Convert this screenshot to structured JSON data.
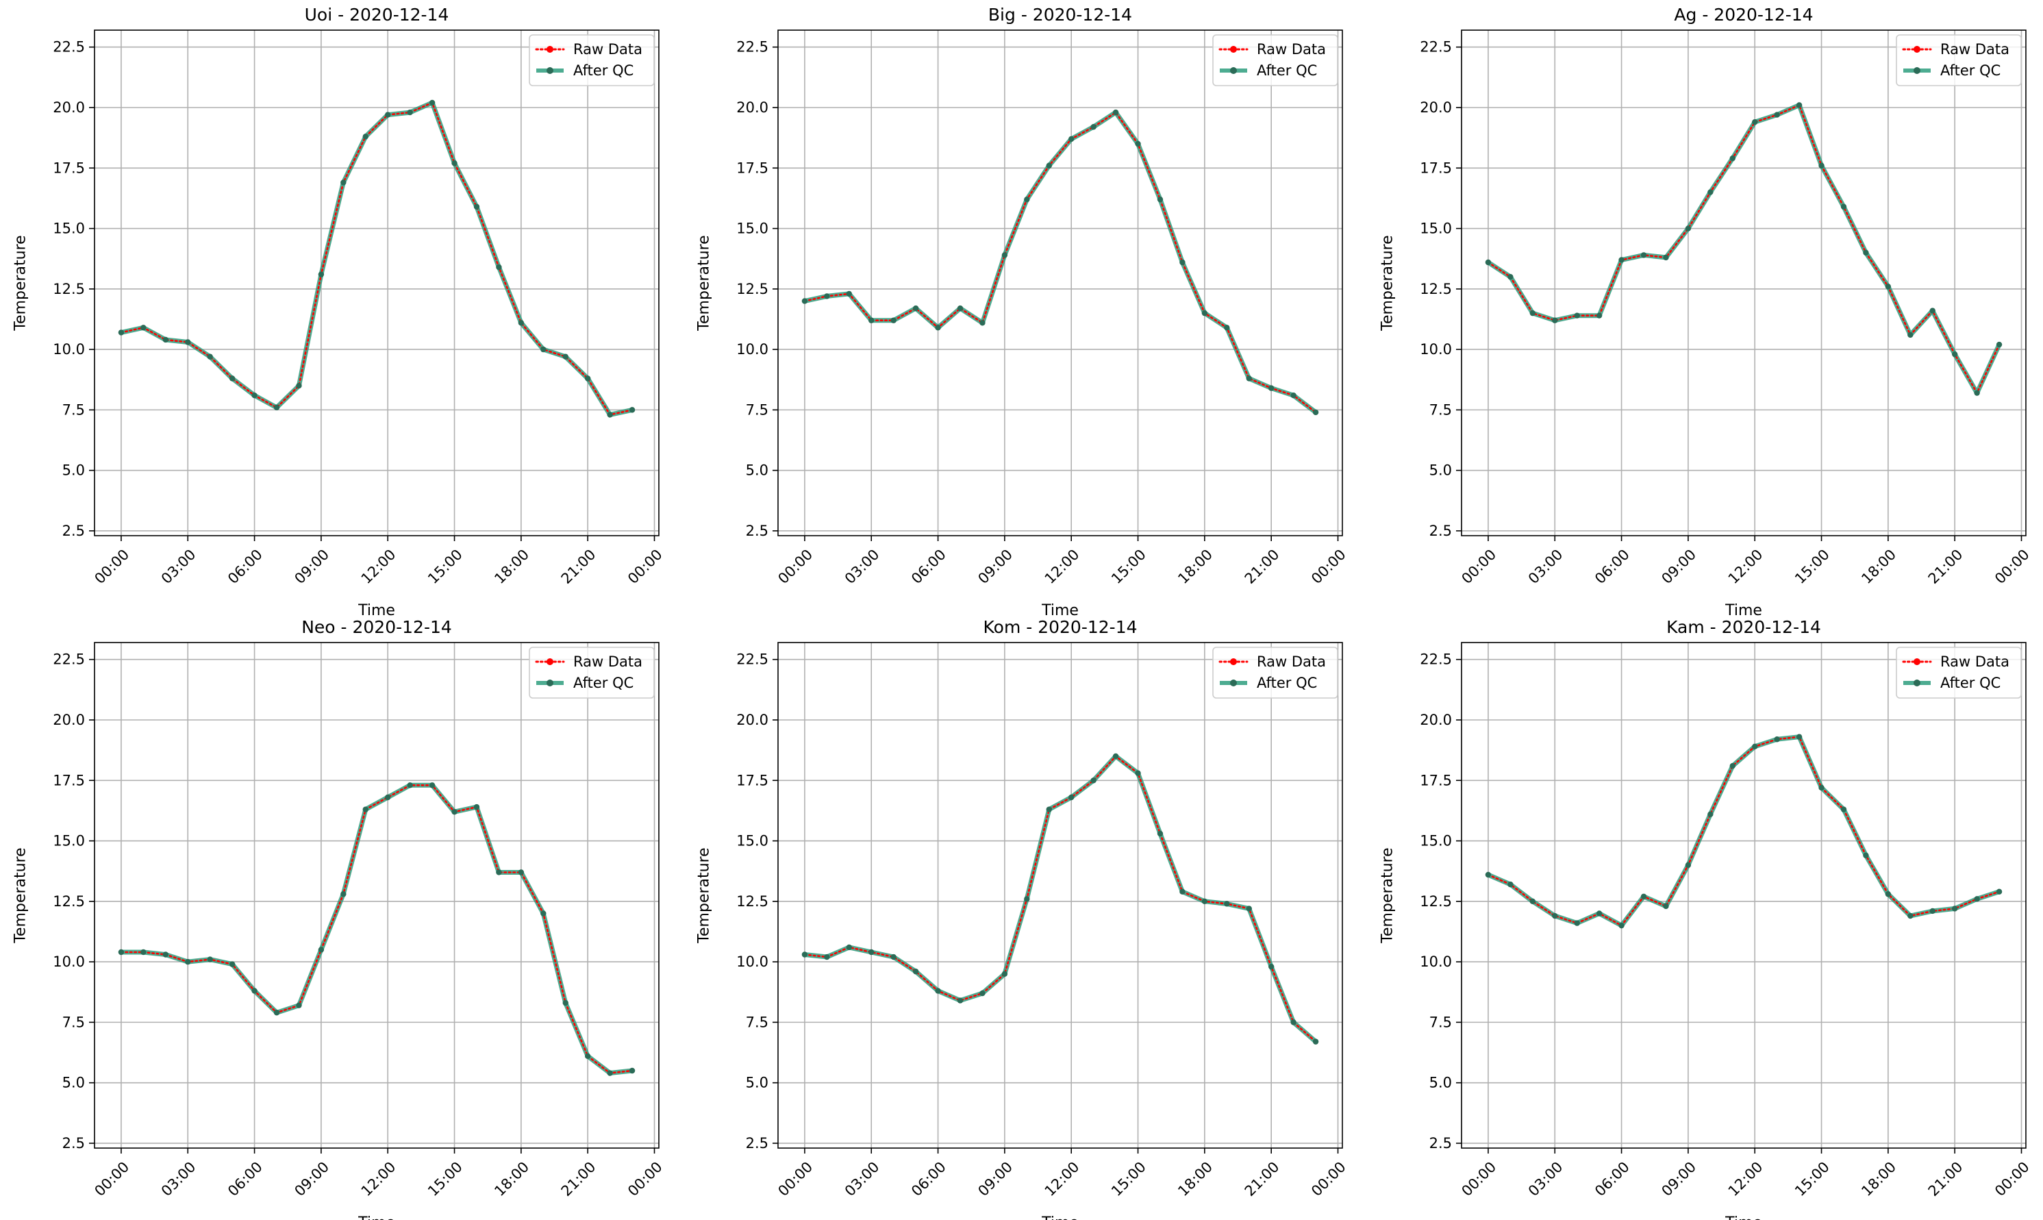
{
  "chart_data": [
    {
      "type": "line",
      "title": "Uoi - 2020-12-14",
      "xlabel": "Time",
      "ylabel": "Temperature",
      "ylim": [
        2.3,
        23.2
      ],
      "xlim": [
        "2020-12-13 22:48",
        "2020-12-15 00:12"
      ],
      "yticks": [
        2.5,
        5.0,
        7.5,
        10.0,
        12.5,
        15.0,
        17.5,
        20.0,
        22.5
      ],
      "xticks": [
        "2020-12-14 00:00",
        "2020-12-14 03:00",
        "2020-12-14 06:00",
        "2020-12-14 09:00",
        "2020-12-14 12:00",
        "2020-12-14 15:00",
        "2020-12-14 18:00",
        "2020-12-14 21:00",
        "2020-12-15 00:00"
      ],
      "xtick_labels": [
        "00:00",
        "03:00",
        "06:00",
        "09:00",
        "12:00",
        "15:00",
        "18:00",
        "21:00",
        "00:00"
      ],
      "grid": true,
      "legend_position": "top-right",
      "x": [
        "2020-12-14 00:00",
        "2020-12-14 01:00",
        "2020-12-14 02:00",
        "2020-12-14 03:00",
        "2020-12-14 04:00",
        "2020-12-14 05:00",
        "2020-12-14 06:00",
        "2020-12-14 07:00",
        "2020-12-14 08:00",
        "2020-12-14 09:00",
        "2020-12-14 10:00",
        "2020-12-14 11:00",
        "2020-12-14 12:00",
        "2020-12-14 13:00",
        "2020-12-14 14:00",
        "2020-12-14 15:00",
        "2020-12-14 16:00",
        "2020-12-14 17:00",
        "2020-12-14 18:00",
        "2020-12-14 19:00",
        "2020-12-14 20:00",
        "2020-12-14 21:00",
        "2020-12-14 22:00",
        "2020-12-14 23:00"
      ],
      "series": [
        {
          "name": "Raw Data",
          "color": "#ff0000",
          "values": [
            10.7,
            10.9,
            10.4,
            10.3,
            9.7,
            8.8,
            8.1,
            7.6,
            8.5,
            13.1,
            16.9,
            18.8,
            19.7,
            19.8,
            20.2,
            17.7,
            15.9,
            13.4,
            11.1,
            10.0,
            9.7,
            8.8,
            7.3,
            7.5
          ]
        },
        {
          "name": "After QC",
          "color": "#2e9e7e",
          "values": [
            10.7,
            10.9,
            10.4,
            10.3,
            9.7,
            8.8,
            8.1,
            7.6,
            8.5,
            13.1,
            16.9,
            18.8,
            19.7,
            19.8,
            20.2,
            17.7,
            15.9,
            13.4,
            11.1,
            10.0,
            9.7,
            8.8,
            7.3,
            7.5
          ]
        }
      ]
    },
    {
      "type": "line",
      "title": "Big - 2020-12-14",
      "xlabel": "Time",
      "ylabel": "Temperature",
      "ylim": [
        2.3,
        23.2
      ],
      "xlim": [
        "2020-12-13 22:48",
        "2020-12-15 00:12"
      ],
      "yticks": [
        2.5,
        5.0,
        7.5,
        10.0,
        12.5,
        15.0,
        17.5,
        20.0,
        22.5
      ],
      "xticks": [
        "2020-12-14 00:00",
        "2020-12-14 03:00",
        "2020-12-14 06:00",
        "2020-12-14 09:00",
        "2020-12-14 12:00",
        "2020-12-14 15:00",
        "2020-12-14 18:00",
        "2020-12-14 21:00",
        "2020-12-15 00:00"
      ],
      "xtick_labels": [
        "00:00",
        "03:00",
        "06:00",
        "09:00",
        "12:00",
        "15:00",
        "18:00",
        "21:00",
        "00:00"
      ],
      "grid": true,
      "legend_position": "top-right",
      "x": [
        "2020-12-14 00:00",
        "2020-12-14 01:00",
        "2020-12-14 02:00",
        "2020-12-14 03:00",
        "2020-12-14 04:00",
        "2020-12-14 05:00",
        "2020-12-14 06:00",
        "2020-12-14 07:00",
        "2020-12-14 08:00",
        "2020-12-14 09:00",
        "2020-12-14 10:00",
        "2020-12-14 11:00",
        "2020-12-14 12:00",
        "2020-12-14 13:00",
        "2020-12-14 14:00",
        "2020-12-14 15:00",
        "2020-12-14 16:00",
        "2020-12-14 17:00",
        "2020-12-14 18:00",
        "2020-12-14 19:00",
        "2020-12-14 20:00",
        "2020-12-14 21:00",
        "2020-12-14 22:00",
        "2020-12-14 23:00"
      ],
      "series": [
        {
          "name": "Raw Data",
          "color": "#ff0000",
          "values": [
            12.0,
            12.2,
            12.3,
            11.2,
            11.2,
            11.7,
            10.9,
            11.7,
            11.1,
            13.9,
            16.2,
            17.6,
            18.7,
            19.2,
            19.8,
            18.5,
            16.2,
            13.6,
            11.5,
            10.9,
            8.8,
            8.4,
            8.1,
            7.4
          ]
        },
        {
          "name": "After QC",
          "color": "#2e9e7e",
          "values": [
            12.0,
            12.2,
            12.3,
            11.2,
            11.2,
            11.7,
            10.9,
            11.7,
            11.1,
            13.9,
            16.2,
            17.6,
            18.7,
            19.2,
            19.8,
            18.5,
            16.2,
            13.6,
            11.5,
            10.9,
            8.8,
            8.4,
            8.1,
            7.4
          ]
        }
      ]
    },
    {
      "type": "line",
      "title": "Ag - 2020-12-14",
      "xlabel": "Time",
      "ylabel": "Temperature",
      "ylim": [
        2.3,
        23.2
      ],
      "xlim": [
        "2020-12-13 22:48",
        "2020-12-15 00:12"
      ],
      "yticks": [
        2.5,
        5.0,
        7.5,
        10.0,
        12.5,
        15.0,
        17.5,
        20.0,
        22.5
      ],
      "xticks": [
        "2020-12-14 00:00",
        "2020-12-14 03:00",
        "2020-12-14 06:00",
        "2020-12-14 09:00",
        "2020-12-14 12:00",
        "2020-12-14 15:00",
        "2020-12-14 18:00",
        "2020-12-14 21:00",
        "2020-12-15 00:00"
      ],
      "xtick_labels": [
        "00:00",
        "03:00",
        "06:00",
        "09:00",
        "12:00",
        "15:00",
        "18:00",
        "21:00",
        "00:00"
      ],
      "grid": true,
      "legend_position": "top-right",
      "x": [
        "2020-12-14 00:00",
        "2020-12-14 01:00",
        "2020-12-14 02:00",
        "2020-12-14 03:00",
        "2020-12-14 04:00",
        "2020-12-14 05:00",
        "2020-12-14 06:00",
        "2020-12-14 07:00",
        "2020-12-14 08:00",
        "2020-12-14 09:00",
        "2020-12-14 10:00",
        "2020-12-14 11:00",
        "2020-12-14 12:00",
        "2020-12-14 13:00",
        "2020-12-14 14:00",
        "2020-12-14 15:00",
        "2020-12-14 16:00",
        "2020-12-14 17:00",
        "2020-12-14 18:00",
        "2020-12-14 19:00",
        "2020-12-14 20:00",
        "2020-12-14 21:00",
        "2020-12-14 22:00",
        "2020-12-14 23:00"
      ],
      "series": [
        {
          "name": "Raw Data",
          "color": "#ff0000",
          "values": [
            13.6,
            13.0,
            11.5,
            11.2,
            11.4,
            11.4,
            13.7,
            13.9,
            13.8,
            15.0,
            16.5,
            17.9,
            19.4,
            19.7,
            20.1,
            17.6,
            15.9,
            14.0,
            12.6,
            10.6,
            11.6,
            9.8,
            8.2,
            10.2
          ]
        },
        {
          "name": "After QC",
          "color": "#2e9e7e",
          "values": [
            13.6,
            13.0,
            11.5,
            11.2,
            11.4,
            11.4,
            13.7,
            13.9,
            13.8,
            15.0,
            16.5,
            17.9,
            19.4,
            19.7,
            20.1,
            17.6,
            15.9,
            14.0,
            12.6,
            10.6,
            11.6,
            9.8,
            8.2,
            10.2
          ]
        }
      ]
    },
    {
      "type": "line",
      "title": "Neo - 2020-12-14",
      "xlabel": "Time",
      "ylabel": "Temperature",
      "ylim": [
        2.3,
        23.2
      ],
      "xlim": [
        "2020-12-13 22:48",
        "2020-12-15 00:12"
      ],
      "yticks": [
        2.5,
        5.0,
        7.5,
        10.0,
        12.5,
        15.0,
        17.5,
        20.0,
        22.5
      ],
      "xticks": [
        "2020-12-14 00:00",
        "2020-12-14 03:00",
        "2020-12-14 06:00",
        "2020-12-14 09:00",
        "2020-12-14 12:00",
        "2020-12-14 15:00",
        "2020-12-14 18:00",
        "2020-12-14 21:00",
        "2020-12-15 00:00"
      ],
      "xtick_labels": [
        "00:00",
        "03:00",
        "06:00",
        "09:00",
        "12:00",
        "15:00",
        "18:00",
        "21:00",
        "00:00"
      ],
      "grid": true,
      "legend_position": "top-right",
      "x": [
        "2020-12-14 00:00",
        "2020-12-14 01:00",
        "2020-12-14 02:00",
        "2020-12-14 03:00",
        "2020-12-14 04:00",
        "2020-12-14 05:00",
        "2020-12-14 06:00",
        "2020-12-14 07:00",
        "2020-12-14 08:00",
        "2020-12-14 09:00",
        "2020-12-14 10:00",
        "2020-12-14 11:00",
        "2020-12-14 12:00",
        "2020-12-14 13:00",
        "2020-12-14 14:00",
        "2020-12-14 15:00",
        "2020-12-14 16:00",
        "2020-12-14 17:00",
        "2020-12-14 18:00",
        "2020-12-14 19:00",
        "2020-12-14 20:00",
        "2020-12-14 21:00",
        "2020-12-14 22:00",
        "2020-12-14 23:00"
      ],
      "series": [
        {
          "name": "Raw Data",
          "color": "#ff0000",
          "values": [
            10.4,
            10.4,
            10.3,
            10.0,
            10.1,
            9.9,
            8.8,
            7.9,
            8.2,
            10.5,
            12.8,
            16.3,
            16.8,
            17.3,
            17.3,
            16.2,
            16.4,
            13.7,
            13.7,
            12.0,
            8.3,
            6.1,
            5.4,
            5.5
          ]
        },
        {
          "name": "After QC",
          "color": "#2e9e7e",
          "values": [
            10.4,
            10.4,
            10.3,
            10.0,
            10.1,
            9.9,
            8.8,
            7.9,
            8.2,
            10.5,
            12.8,
            16.3,
            16.8,
            17.3,
            17.3,
            16.2,
            16.4,
            13.7,
            13.7,
            12.0,
            8.3,
            6.1,
            5.4,
            5.5
          ]
        }
      ]
    },
    {
      "type": "line",
      "title": "Kom - 2020-12-14",
      "xlabel": "Time",
      "ylabel": "Temperature",
      "ylim": [
        2.3,
        23.2
      ],
      "xlim": [
        "2020-12-13 22:48",
        "2020-12-15 00:12"
      ],
      "yticks": [
        2.5,
        5.0,
        7.5,
        10.0,
        12.5,
        15.0,
        17.5,
        20.0,
        22.5
      ],
      "xticks": [
        "2020-12-14 00:00",
        "2020-12-14 03:00",
        "2020-12-14 06:00",
        "2020-12-14 09:00",
        "2020-12-14 12:00",
        "2020-12-14 15:00",
        "2020-12-14 18:00",
        "2020-12-14 21:00",
        "2020-12-15 00:00"
      ],
      "xtick_labels": [
        "00:00",
        "03:00",
        "06:00",
        "09:00",
        "12:00",
        "15:00",
        "18:00",
        "21:00",
        "00:00"
      ],
      "grid": true,
      "legend_position": "top-right",
      "x": [
        "2020-12-14 00:00",
        "2020-12-14 01:00",
        "2020-12-14 02:00",
        "2020-12-14 03:00",
        "2020-12-14 04:00",
        "2020-12-14 05:00",
        "2020-12-14 06:00",
        "2020-12-14 07:00",
        "2020-12-14 08:00",
        "2020-12-14 09:00",
        "2020-12-14 10:00",
        "2020-12-14 11:00",
        "2020-12-14 12:00",
        "2020-12-14 13:00",
        "2020-12-14 14:00",
        "2020-12-14 15:00",
        "2020-12-14 16:00",
        "2020-12-14 17:00",
        "2020-12-14 18:00",
        "2020-12-14 19:00",
        "2020-12-14 20:00",
        "2020-12-14 21:00",
        "2020-12-14 22:00",
        "2020-12-14 23:00"
      ],
      "series": [
        {
          "name": "Raw Data",
          "color": "#ff0000",
          "values": [
            10.3,
            10.2,
            10.6,
            10.4,
            10.2,
            9.6,
            8.8,
            8.4,
            8.7,
            9.5,
            12.6,
            16.3,
            16.8,
            17.5,
            18.5,
            17.8,
            15.3,
            12.9,
            12.5,
            12.4,
            12.2,
            9.8,
            7.5,
            6.7
          ]
        },
        {
          "name": "After QC",
          "color": "#2e9e7e",
          "values": [
            10.3,
            10.2,
            10.6,
            10.4,
            10.2,
            9.6,
            8.8,
            8.4,
            8.7,
            9.5,
            12.6,
            16.3,
            16.8,
            17.5,
            18.5,
            17.8,
            15.3,
            12.9,
            12.5,
            12.4,
            12.2,
            9.8,
            7.5,
            6.7
          ]
        }
      ]
    },
    {
      "type": "line",
      "title": "Kam - 2020-12-14",
      "xlabel": "Time",
      "ylabel": "Temperature",
      "ylim": [
        2.3,
        23.2
      ],
      "xlim": [
        "2020-12-13 22:48",
        "2020-12-15 00:12"
      ],
      "yticks": [
        2.5,
        5.0,
        7.5,
        10.0,
        12.5,
        15.0,
        17.5,
        20.0,
        22.5
      ],
      "xticks": [
        "2020-12-14 00:00",
        "2020-12-14 03:00",
        "2020-12-14 06:00",
        "2020-12-14 09:00",
        "2020-12-14 12:00",
        "2020-12-14 15:00",
        "2020-12-14 18:00",
        "2020-12-14 21:00",
        "2020-12-15 00:00"
      ],
      "xtick_labels": [
        "00:00",
        "03:00",
        "06:00",
        "09:00",
        "12:00",
        "15:00",
        "18:00",
        "21:00",
        "00:00"
      ],
      "grid": true,
      "legend_position": "top-right",
      "x": [
        "2020-12-14 00:00",
        "2020-12-14 01:00",
        "2020-12-14 02:00",
        "2020-12-14 03:00",
        "2020-12-14 04:00",
        "2020-12-14 05:00",
        "2020-12-14 06:00",
        "2020-12-14 07:00",
        "2020-12-14 08:00",
        "2020-12-14 09:00",
        "2020-12-14 10:00",
        "2020-12-14 11:00",
        "2020-12-14 12:00",
        "2020-12-14 13:00",
        "2020-12-14 14:00",
        "2020-12-14 15:00",
        "2020-12-14 16:00",
        "2020-12-14 17:00",
        "2020-12-14 18:00",
        "2020-12-14 19:00",
        "2020-12-14 20:00",
        "2020-12-14 21:00",
        "2020-12-14 22:00",
        "2020-12-14 23:00"
      ],
      "series": [
        {
          "name": "Raw Data",
          "color": "#ff0000",
          "values": [
            13.6,
            13.2,
            12.5,
            11.9,
            11.6,
            12.0,
            11.5,
            12.7,
            12.3,
            14.0,
            16.1,
            18.1,
            18.9,
            19.2,
            19.3,
            17.2,
            16.3,
            14.4,
            12.8,
            11.9,
            12.1,
            12.2,
            12.6,
            12.9
          ]
        },
        {
          "name": "After QC",
          "color": "#2e9e7e",
          "values": [
            13.6,
            13.2,
            12.5,
            11.9,
            11.6,
            12.0,
            11.5,
            12.7,
            12.3,
            14.0,
            16.1,
            18.1,
            18.9,
            19.2,
            19.3,
            17.2,
            16.3,
            14.4,
            12.8,
            11.9,
            12.1,
            12.2,
            12.6,
            12.9
          ]
        }
      ]
    }
  ]
}
